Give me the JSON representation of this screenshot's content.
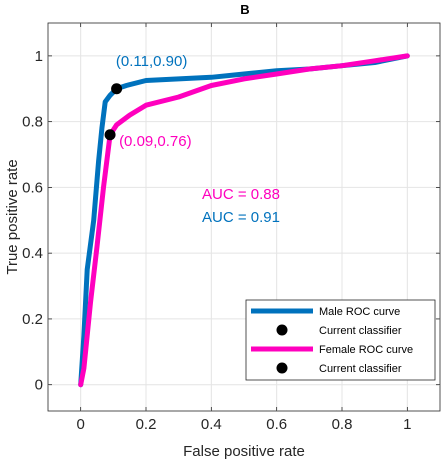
{
  "chart_data": {
    "type": "line",
    "title": "B",
    "xlabel": "False positive rate",
    "ylabel": "True positive rate",
    "xlim": [
      -0.1,
      1.1
    ],
    "ylim": [
      -0.08,
      1.1
    ],
    "x_ticks": [
      0,
      0.2,
      0.4,
      0.6,
      0.8,
      1
    ],
    "x_tick_labels": [
      "0",
      "0.2",
      "0.4",
      "0.6",
      "0.8",
      "1"
    ],
    "y_ticks": [
      0,
      0.2,
      0.4,
      0.6,
      0.8,
      1
    ],
    "y_tick_labels": [
      "0",
      "0.2",
      "0.4",
      "0.6",
      "0.8",
      "1"
    ],
    "grid": true,
    "legend_position": "bottom-right",
    "series": [
      {
        "name": "Male ROC curve",
        "color": "#0072BD",
        "x": [
          0.0,
          0.01,
          0.02,
          0.04,
          0.055,
          0.065,
          0.075,
          0.09,
          0.11,
          0.14,
          0.2,
          0.3,
          0.4,
          0.5,
          0.6,
          0.7,
          0.8,
          0.9,
          1.0
        ],
        "y": [
          0.0,
          0.15,
          0.35,
          0.5,
          0.68,
          0.78,
          0.86,
          0.88,
          0.9,
          0.91,
          0.925,
          0.93,
          0.935,
          0.945,
          0.955,
          0.96,
          0.97,
          0.98,
          1.0
        ]
      },
      {
        "name": "Female ROC curve",
        "color": "#FF00BE",
        "x": [
          0.0,
          0.01,
          0.03,
          0.05,
          0.07,
          0.09,
          0.11,
          0.15,
          0.2,
          0.3,
          0.4,
          0.5,
          0.6,
          0.7,
          0.8,
          0.9,
          1.0
        ],
        "y": [
          0.0,
          0.05,
          0.25,
          0.42,
          0.6,
          0.76,
          0.79,
          0.82,
          0.85,
          0.875,
          0.91,
          0.93,
          0.945,
          0.96,
          0.97,
          0.985,
          1.0
        ]
      }
    ],
    "markers": [
      {
        "name": "Current classifier",
        "x": 0.11,
        "y": 0.9,
        "color": "#000000",
        "label": "(0.11,0.90)",
        "label_color": "#0072BD"
      },
      {
        "name": "Current classifier",
        "x": 0.09,
        "y": 0.76,
        "color": "#000000",
        "label": "(0.09,0.76)",
        "label_color": "#FF00BE"
      }
    ],
    "annotations": [
      {
        "text": "AUC = 0.88",
        "color": "#FF00BE"
      },
      {
        "text": "AUC = 0.91",
        "color": "#0072BD"
      }
    ],
    "legend": [
      {
        "label": "Male ROC curve",
        "kind": "line",
        "color": "#0072BD"
      },
      {
        "label": "Current classifier",
        "kind": "dot",
        "color": "#000000"
      },
      {
        "label": "Female ROC curve",
        "kind": "line",
        "color": "#FF00BE"
      },
      {
        "label": "Current classifier",
        "kind": "dot",
        "color": "#000000"
      }
    ]
  }
}
